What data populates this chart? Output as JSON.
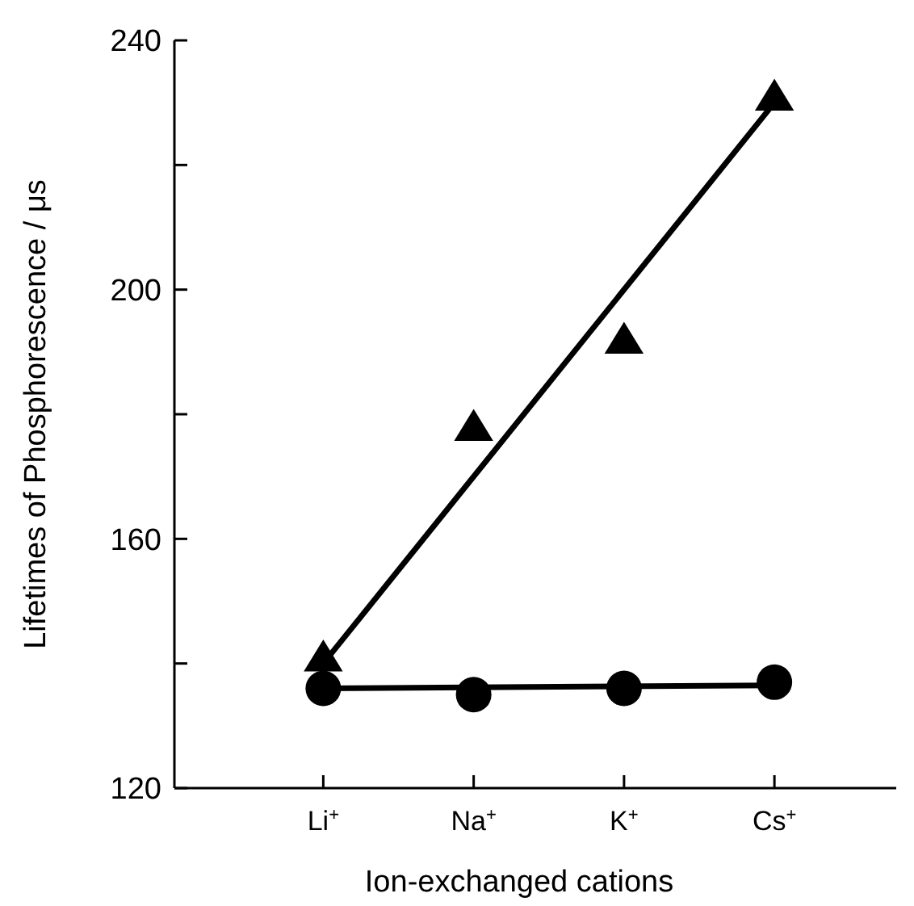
{
  "chart_data": {
    "type": "scatter",
    "xlabel": "Ion-exchanged cations",
    "ylabel": "Lifetimes of Phosphorescence / μs",
    "categories": [
      "Li$^{+}$",
      "Na$^{+}$",
      "K$^{+}$",
      "Cs$^{+}$"
    ],
    "ylim": [
      120,
      240
    ],
    "yticks": [
      120,
      {
        "value": 140,
        "label": null
      },
      160,
      {
        "value": 180,
        "label": null
      },
      200,
      {
        "value": 220,
        "label": null
      },
      240
    ],
    "grid": false,
    "series": [
      {
        "color": "#000000",
        "marker": "triangle",
        "values": [
          141,
          178,
          192,
          231
        ]
      },
      {
        "color": "#000000",
        "marker": "circle",
        "values": [
          136,
          135,
          136,
          137
        ]
      },
      {
        "type": "line",
        "color": "#000000",
        "marker": "none",
        "x": [
          "Li$^{+}$",
          "Cs$^{+}$"
        ],
        "values": [
          140,
          230
        ]
      },
      {
        "type": "line",
        "color": "#000000",
        "marker": "none",
        "x": [
          "Li$^{+}$",
          "Cs$^{+}$"
        ],
        "values": [
          136,
          136.5
        ]
      }
    ]
  }
}
